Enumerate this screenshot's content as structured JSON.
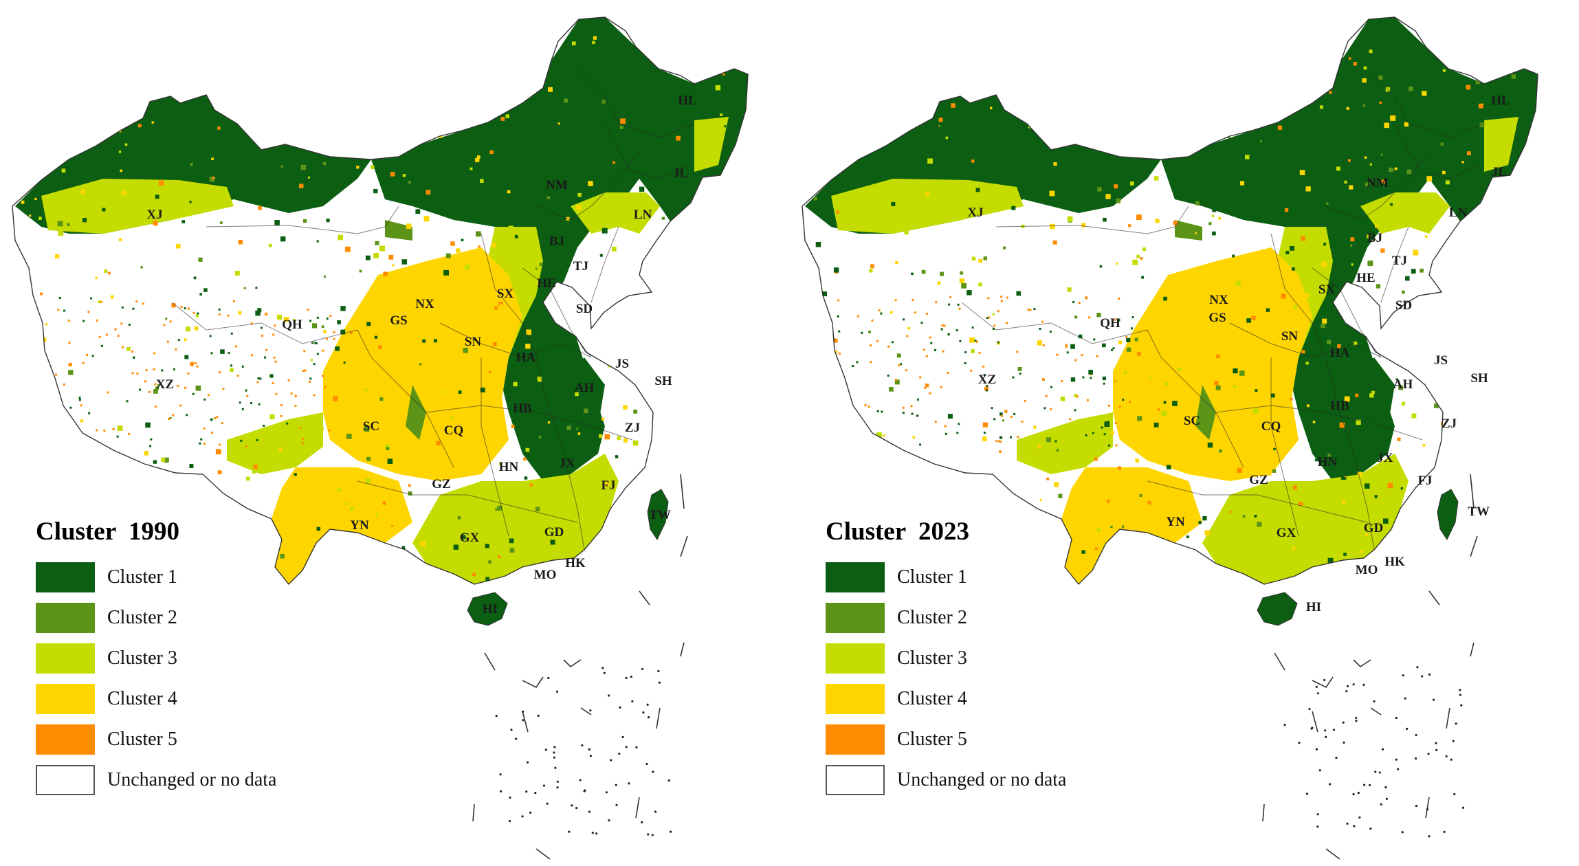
{
  "colors": {
    "cluster1": "#0b5e12",
    "cluster2": "#5c9417",
    "cluster3": "#c4dc00",
    "cluster4": "#ffd500",
    "cluster5": "#ff8c00",
    "unchanged": "#ffffff",
    "border": "#333333"
  },
  "legend_items": [
    {
      "label": "Cluster 1",
      "color_key": "cluster1"
    },
    {
      "label": "Cluster 2",
      "color_key": "cluster2"
    },
    {
      "label": "Cluster 3",
      "color_key": "cluster3"
    },
    {
      "label": "Cluster 4",
      "color_key": "cluster4"
    },
    {
      "label": "Cluster 5",
      "color_key": "cluster5"
    },
    {
      "label": "Unchanged or no data",
      "color_key": "unchanged"
    }
  ],
  "maps": [
    {
      "id": "left",
      "legend_title": "Cluster  1990"
    },
    {
      "id": "right",
      "legend_title": "Cluster  2023"
    }
  ],
  "province_labels": [
    "HL",
    "JL",
    "LN",
    "NM",
    "BJ",
    "TJ",
    "HE",
    "SX",
    "SD",
    "XJ",
    "QH",
    "NX",
    "GS",
    "SN",
    "HA",
    "JS",
    "SH",
    "AH",
    "HB",
    "XZ",
    "SC",
    "CQ",
    "ZJ",
    "HN",
    "JX",
    "GZ",
    "FJ",
    "YN",
    "GX",
    "GD",
    "TW",
    "HK",
    "MO",
    "HI"
  ]
}
